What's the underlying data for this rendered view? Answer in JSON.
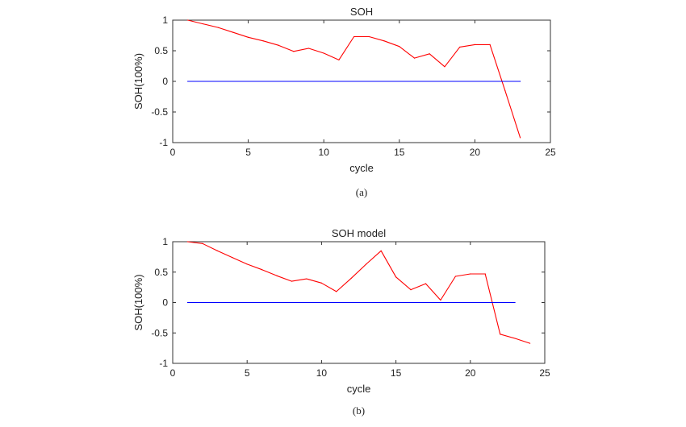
{
  "colors": {
    "series_1": "#ff0000",
    "series_2": "#0000ff",
    "axes": "#333333",
    "background": "#ffffff"
  },
  "chart_data": [
    {
      "type": "line",
      "panel_label": "(a)",
      "title": "SOH",
      "xlabel": "cycle",
      "ylabel": "SOH(100%)",
      "xlim": [
        0,
        25
      ],
      "ylim": [
        -1,
        1
      ],
      "xticks": [
        0,
        5,
        10,
        15,
        20,
        25
      ],
      "yticks": [
        -1,
        -0.5,
        0,
        0.5,
        1
      ],
      "grid": false,
      "legend": "none",
      "series": [
        {
          "color": "#ff0000",
          "x": [
            1,
            2,
            3,
            4,
            5,
            6,
            7,
            8,
            9,
            10,
            11,
            12,
            13,
            14,
            15,
            16,
            17,
            18,
            19,
            20,
            21,
            22,
            23
          ],
          "y": [
            1.0,
            0.94,
            0.88,
            0.8,
            0.72,
            0.66,
            0.59,
            0.49,
            0.54,
            0.46,
            0.35,
            0.73,
            0.73,
            0.66,
            0.57,
            0.38,
            0.45,
            0.24,
            0.56,
            0.6,
            0.6,
            -0.15,
            -0.92
          ]
        },
        {
          "color": "#0000ff",
          "x": [
            1,
            23
          ],
          "y": [
            0,
            0
          ]
        }
      ]
    },
    {
      "type": "line",
      "panel_label": "(b)",
      "title": "SOH model",
      "xlabel": "cycle",
      "ylabel": "SOH(100%)",
      "xlim": [
        0,
        25
      ],
      "ylim": [
        -1,
        1
      ],
      "xticks": [
        0,
        5,
        10,
        15,
        20,
        25
      ],
      "yticks": [
        -1,
        -0.5,
        0,
        0.5,
        1
      ],
      "grid": false,
      "legend": "none",
      "series": [
        {
          "color": "#ff0000",
          "x": [
            1,
            2,
            3,
            4,
            5,
            6,
            7,
            8,
            9,
            10,
            11,
            12,
            13,
            14,
            15,
            16,
            17,
            18,
            19,
            20,
            21,
            22,
            23,
            24
          ],
          "y": [
            1.0,
            0.97,
            0.85,
            0.74,
            0.63,
            0.54,
            0.44,
            0.35,
            0.39,
            0.32,
            0.18,
            0.4,
            0.63,
            0.85,
            0.42,
            0.21,
            0.31,
            0.04,
            0.43,
            0.47,
            0.47,
            -0.52,
            -0.59,
            -0.67
          ]
        },
        {
          "color": "#0000ff",
          "x": [
            1,
            23
          ],
          "y": [
            0,
            0
          ]
        }
      ]
    }
  ]
}
